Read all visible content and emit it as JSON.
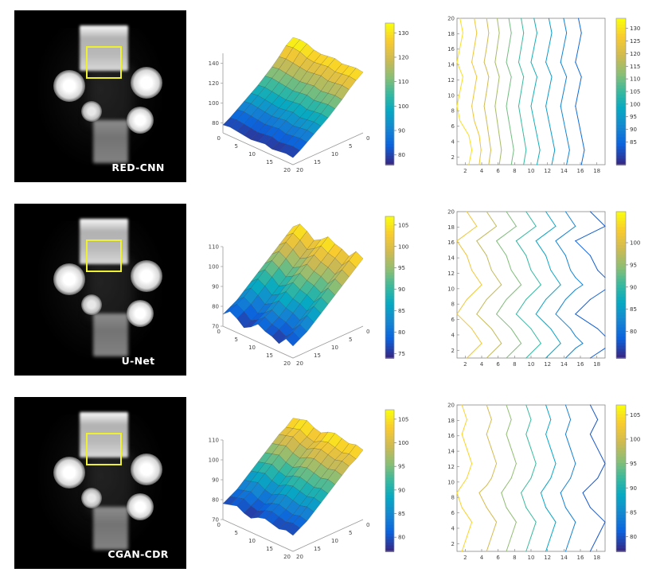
{
  "colors": {
    "page_bg": "#ffffff",
    "phantom_bg": "#000000",
    "roi": "#eef030",
    "label_text": "#ffffff"
  },
  "panels": {
    "rows": [
      {
        "label": "RED-CNN"
      },
      {
        "label": "U-Net"
      },
      {
        "label": "CGAN-CDR"
      }
    ]
  },
  "chart_data": [
    {
      "id": "surface-red-cnn",
      "type": "surface",
      "panel": "RED-CNN",
      "x": {
        "range": [
          0,
          20
        ],
        "ticks": [
          0,
          5,
          10,
          15,
          20
        ]
      },
      "y": {
        "range": [
          0,
          20
        ],
        "ticks": [
          0,
          5,
          10,
          15,
          20
        ]
      },
      "z": {
        "range": [
          70,
          150
        ],
        "ticks": [
          80,
          100,
          120,
          140
        ]
      },
      "clim": [
        76,
        134
      ],
      "colorbar_ticks": [
        130,
        120,
        110,
        100,
        90,
        80
      ],
      "grid": [
        [
          134,
          135,
          134,
          131,
          130,
          131,
          132,
          130,
          131,
          132,
          131
        ],
        [
          129,
          130,
          129,
          126,
          125,
          126,
          127,
          125,
          126,
          127,
          126
        ],
        [
          121,
          122,
          121,
          120,
          119,
          120,
          121,
          119,
          120,
          121,
          120
        ],
        [
          114,
          115,
          114,
          113,
          112,
          113,
          114,
          112,
          113,
          114,
          113
        ],
        [
          108,
          109,
          108,
          107,
          106,
          107,
          108,
          106,
          107,
          108,
          107
        ],
        [
          102,
          103,
          102,
          101,
          100,
          101,
          102,
          100,
          101,
          102,
          101
        ],
        [
          97,
          98,
          97,
          96,
          95,
          96,
          97,
          95,
          96,
          97,
          96
        ],
        [
          92,
          93,
          92,
          91,
          90,
          91,
          92,
          90,
          91,
          92,
          91
        ],
        [
          87,
          88,
          87,
          86,
          85,
          86,
          87,
          85,
          86,
          87,
          86
        ],
        [
          82,
          83,
          82,
          81,
          80,
          81,
          82,
          80,
          81,
          82,
          81
        ],
        [
          78,
          79,
          78,
          77,
          76,
          77,
          78,
          76,
          77,
          78,
          77
        ]
      ]
    },
    {
      "id": "contour-red-cnn",
      "type": "contour",
      "panel": "RED-CNN",
      "grid_from": 0,
      "x": {
        "range": [
          1,
          19
        ],
        "ticks": [
          2,
          4,
          6,
          8,
          10,
          12,
          14,
          16,
          18
        ]
      },
      "y": {
        "range": [
          1,
          20
        ],
        "ticks": [
          2,
          4,
          6,
          8,
          10,
          12,
          14,
          16,
          18,
          20
        ]
      },
      "levels": [
        85,
        90,
        95,
        100,
        105,
        110,
        115,
        120,
        125,
        130
      ],
      "clim": [
        76,
        134
      ],
      "colorbar_ticks": [
        130,
        125,
        120,
        115,
        110,
        105,
        100,
        95,
        90,
        85
      ]
    },
    {
      "id": "surface-u-net",
      "type": "surface",
      "panel": "U-Net",
      "x": {
        "range": [
          0,
          20
        ],
        "ticks": [
          0,
          5,
          10,
          15,
          20
        ]
      },
      "y": {
        "range": [
          0,
          20
        ],
        "ticks": [
          0,
          5,
          10,
          15,
          20
        ]
      },
      "z": {
        "range": [
          70,
          110
        ],
        "ticks": [
          70,
          80,
          90,
          100,
          110
        ]
      },
      "clim": [
        74,
        107
      ],
      "colorbar_ticks": [
        105,
        100,
        95,
        90,
        85,
        80,
        75
      ],
      "grid": [
        [
          104,
          107,
          105,
          102,
          104,
          107,
          105,
          104,
          102,
          106,
          104
        ],
        [
          101,
          104,
          102,
          99,
          101,
          104,
          102,
          101,
          99,
          103,
          101
        ],
        [
          98,
          101,
          99,
          96,
          98,
          101,
          99,
          98,
          96,
          100,
          98
        ],
        [
          95,
          98,
          96,
          93,
          95,
          98,
          96,
          95,
          93,
          97,
          95
        ],
        [
          92,
          95,
          93,
          90,
          92,
          95,
          93,
          92,
          90,
          94,
          92
        ],
        [
          89,
          92,
          90,
          87,
          89,
          92,
          90,
          89,
          87,
          91,
          89
        ],
        [
          86,
          89,
          87,
          84,
          86,
          89,
          87,
          86,
          84,
          88,
          86
        ],
        [
          83,
          86,
          84,
          81,
          83,
          86,
          84,
          83,
          81,
          85,
          83
        ],
        [
          80,
          83,
          81,
          78,
          80,
          83,
          81,
          80,
          78,
          82,
          80
        ],
        [
          78,
          81,
          79,
          76,
          78,
          81,
          79,
          78,
          76,
          80,
          78
        ],
        [
          76,
          79,
          77,
          74,
          76,
          79,
          77,
          76,
          74,
          78,
          76
        ]
      ]
    },
    {
      "id": "contour-u-net",
      "type": "contour",
      "panel": "U-Net",
      "grid_from": 2,
      "x": {
        "range": [
          1,
          19
        ],
        "ticks": [
          2,
          4,
          6,
          8,
          10,
          12,
          14,
          16,
          18
        ]
      },
      "y": {
        "range": [
          1,
          20
        ],
        "ticks": [
          2,
          4,
          6,
          8,
          10,
          12,
          14,
          16,
          18,
          20
        ]
      },
      "levels": [
        78,
        82,
        86,
        90,
        94,
        98,
        102
      ],
      "clim": [
        74,
        107
      ],
      "colorbar_ticks": [
        100,
        95,
        90,
        85,
        80
      ]
    },
    {
      "id": "surface-cgan-cdr",
      "type": "surface",
      "panel": "CGAN-CDR",
      "x": {
        "range": [
          0,
          20
        ],
        "ticks": [
          0,
          5,
          10,
          15,
          20
        ]
      },
      "y": {
        "range": [
          0,
          20
        ],
        "ticks": [
          0,
          5,
          10,
          15,
          20
        ]
      },
      "z": {
        "range": [
          70,
          110
        ],
        "ticks": [
          70,
          80,
          90,
          100,
          110
        ]
      },
      "clim": [
        77,
        107
      ],
      "colorbar_ticks": [
        105,
        100,
        95,
        90,
        85,
        80
      ],
      "grid": [
        [
          105,
          106,
          107,
          105,
          104,
          106,
          107,
          106,
          105,
          106,
          105
        ],
        [
          102,
          103,
          104,
          102,
          101,
          103,
          104,
          103,
          102,
          103,
          102
        ],
        [
          100,
          101,
          102,
          100,
          99,
          101,
          102,
          101,
          100,
          101,
          100
        ],
        [
          97,
          98,
          99,
          97,
          96,
          98,
          99,
          98,
          97,
          98,
          97
        ],
        [
          94,
          95,
          96,
          94,
          93,
          95,
          96,
          95,
          94,
          95,
          94
        ],
        [
          91,
          92,
          93,
          91,
          90,
          92,
          93,
          92,
          91,
          92,
          91
        ],
        [
          88,
          89,
          90,
          88,
          87,
          89,
          90,
          89,
          88,
          89,
          88
        ],
        [
          85,
          86,
          87,
          85,
          84,
          86,
          87,
          86,
          85,
          86,
          85
        ],
        [
          82,
          83,
          84,
          82,
          81,
          83,
          84,
          83,
          82,
          83,
          82
        ],
        [
          80,
          81,
          82,
          80,
          79,
          81,
          82,
          81,
          80,
          81,
          80
        ],
        [
          78,
          79,
          80,
          78,
          77,
          79,
          80,
          79,
          78,
          79,
          78
        ]
      ]
    },
    {
      "id": "contour-cgan-cdr",
      "type": "contour",
      "panel": "CGAN-CDR",
      "grid_from": 4,
      "x": {
        "range": [
          1,
          19
        ],
        "ticks": [
          2,
          4,
          6,
          8,
          10,
          12,
          14,
          16,
          18
        ]
      },
      "y": {
        "range": [
          1,
          20
        ],
        "ticks": [
          2,
          4,
          6,
          8,
          10,
          12,
          14,
          16,
          18,
          20
        ]
      },
      "levels": [
        80,
        84,
        88,
        92,
        96,
        100,
        104
      ],
      "clim": [
        77,
        107
      ],
      "colorbar_ticks": [
        105,
        100,
        95,
        90,
        85,
        80
      ]
    }
  ]
}
